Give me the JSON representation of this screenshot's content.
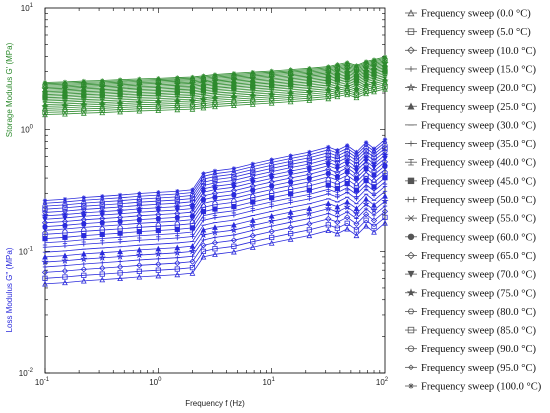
{
  "chart_data": {
    "type": "line",
    "xscale": "log",
    "yscale": "log",
    "xlim": [
      0.1,
      100
    ],
    "ylim": [
      0.01,
      10
    ],
    "xlabel": "Frequency f (Hz)",
    "ylabel_top": "Storage Modulus G' (MPa)",
    "ylabel_bottom": "Loss Modulus G'' (MPa)",
    "x_ticks": [
      {
        "label": "10",
        "exp": "-1"
      },
      {
        "label": "10",
        "exp": "0"
      },
      {
        "label": "10",
        "exp": "1"
      },
      {
        "label": "10",
        "exp": "2"
      }
    ],
    "y_ticks": [
      {
        "label": "10",
        "exp": "-2"
      },
      {
        "label": "10",
        "exp": "-1"
      },
      {
        "label": "10",
        "exp": "0"
      },
      {
        "label": "10",
        "exp": "1"
      }
    ],
    "grid": false,
    "legend_position": "right",
    "colors": {
      "storage": "#2e8b2e",
      "loss": "#2b2bdc",
      "legend_marker": "#555555"
    },
    "x": [
      0.1,
      0.15,
      0.22,
      0.32,
      0.46,
      0.68,
      1.0,
      1.47,
      2.0,
      2.5,
      3.16,
      4.64,
      6.81,
      10.0,
      14.7,
      21.5,
      31.6,
      38.0,
      46.4,
      56.0,
      68.1,
      80.0,
      100.0
    ],
    "storage_base": [
      1.85,
      1.87,
      1.9,
      1.92,
      1.95,
      1.98,
      2.0,
      2.03,
      2.05,
      2.1,
      2.15,
      2.2,
      2.25,
      2.3,
      2.36,
      2.42,
      2.5,
      2.6,
      2.7,
      2.55,
      2.75,
      2.85,
      3.0
    ],
    "loss_base": [
      0.12,
      0.123,
      0.127,
      0.13,
      0.133,
      0.137,
      0.14,
      0.143,
      0.147,
      0.2,
      0.21,
      0.22,
      0.24,
      0.26,
      0.28,
      0.3,
      0.33,
      0.31,
      0.34,
      0.3,
      0.36,
      0.32,
      0.38
    ],
    "series": [
      {
        "name": "Frequency sweep (0.0 °C)",
        "marker": "triangle-up",
        "g_storage_factor": 0.72,
        "g_loss_factor": 0.45
      },
      {
        "name": "Frequency sweep (5.0 °C)",
        "marker": "square",
        "g_storage_factor": 0.75,
        "g_loss_factor": 0.5
      },
      {
        "name": "Frequency sweep (10.0 °C)",
        "marker": "diamond",
        "g_storage_factor": 0.78,
        "g_loss_factor": 0.56
      },
      {
        "name": "Frequency sweep (15.0 °C)",
        "marker": "cross",
        "g_storage_factor": 0.81,
        "g_loss_factor": 0.62
      },
      {
        "name": "Frequency sweep (20.0 °C)",
        "marker": "star",
        "g_storage_factor": 0.84,
        "g_loss_factor": 0.68
      },
      {
        "name": "Frequency sweep (25.0 °C)",
        "marker": "triangle-filled",
        "g_storage_factor": 0.87,
        "g_loss_factor": 0.75
      },
      {
        "name": "Frequency sweep (30.0 °C)",
        "marker": "dash",
        "g_storage_factor": 0.9,
        "g_loss_factor": 0.82
      },
      {
        "name": "Frequency sweep (35.0 °C)",
        "marker": "plus",
        "g_storage_factor": 0.93,
        "g_loss_factor": 0.9
      },
      {
        "name": "Frequency sweep (40.0 °C)",
        "marker": "tee",
        "g_storage_factor": 0.96,
        "g_loss_factor": 0.98
      },
      {
        "name": "Frequency sweep (45.0 °C)",
        "marker": "square-filled",
        "g_storage_factor": 0.99,
        "g_loss_factor": 1.06
      },
      {
        "name": "Frequency sweep (50.0 °C)",
        "marker": "bar",
        "g_storage_factor": 1.02,
        "g_loss_factor": 1.15
      },
      {
        "name": "Frequency sweep (55.0 °C)",
        "marker": "x",
        "g_storage_factor": 1.05,
        "g_loss_factor": 1.24
      },
      {
        "name": "Frequency sweep (60.0 °C)",
        "marker": "circle-filled",
        "g_storage_factor": 1.08,
        "g_loss_factor": 1.33
      },
      {
        "name": "Frequency sweep (65.0 °C)",
        "marker": "diamond-open",
        "g_storage_factor": 1.11,
        "g_loss_factor": 1.43
      },
      {
        "name": "Frequency sweep (70.0 °C)",
        "marker": "triangle-down-filled",
        "g_storage_factor": 1.14,
        "g_loss_factor": 1.53
      },
      {
        "name": "Frequency sweep (75.0 °C)",
        "marker": "star-filled",
        "g_storage_factor": 1.17,
        "g_loss_factor": 1.63
      },
      {
        "name": "Frequency sweep (80.0 °C)",
        "marker": "hexagon",
        "g_storage_factor": 1.2,
        "g_loss_factor": 1.74
      },
      {
        "name": "Frequency sweep (85.0 °C)",
        "marker": "square-open",
        "g_storage_factor": 1.23,
        "g_loss_factor": 1.85
      },
      {
        "name": "Frequency sweep (90.0 °C)",
        "marker": "circle",
        "g_storage_factor": 1.26,
        "g_loss_factor": 1.96
      },
      {
        "name": "Frequency sweep (95.0 °C)",
        "marker": "diamond-small",
        "g_storage_factor": 1.29,
        "g_loss_factor": 2.07
      },
      {
        "name": "Frequency sweep (100.0 °C)",
        "marker": "asterisk",
        "g_storage_factor": 1.32,
        "g_loss_factor": 2.18
      }
    ]
  }
}
